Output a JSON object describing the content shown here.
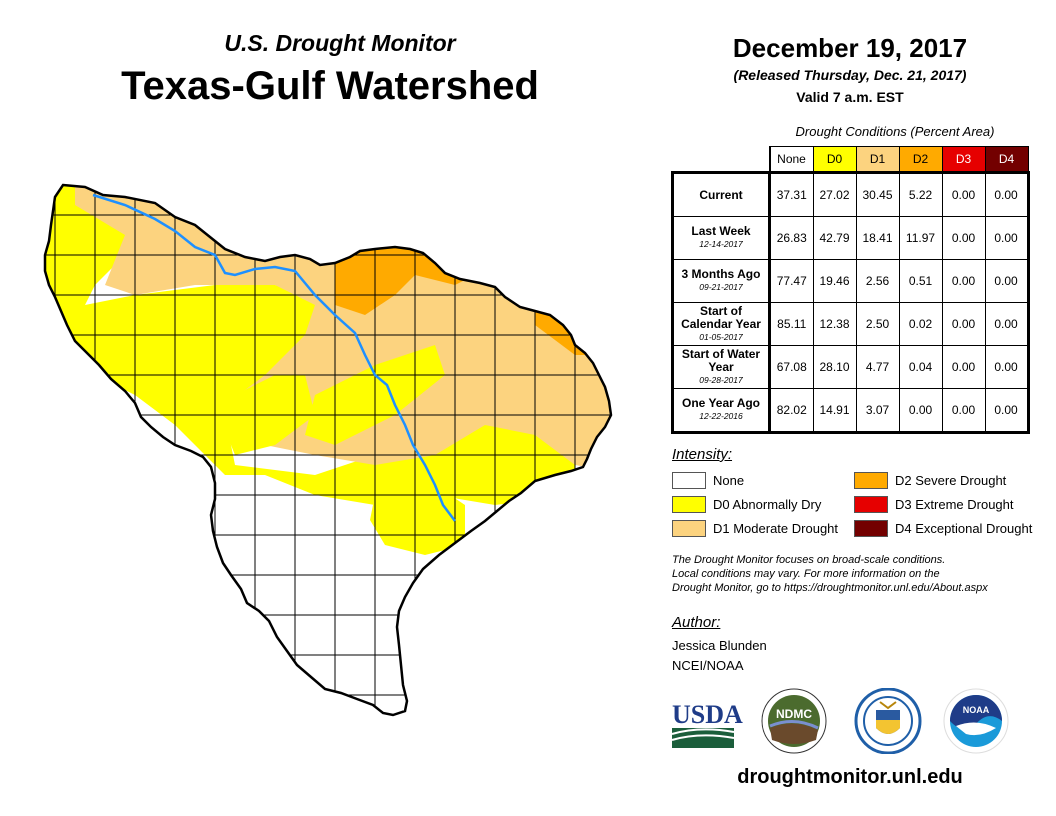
{
  "header": {
    "subtitle": "U.S. Drought Monitor",
    "title": "Texas-Gulf Watershed",
    "date": "December 19, 2017",
    "released": "(Released Thursday, Dec. 21, 2017)",
    "valid": "Valid 7 a.m. EST"
  },
  "table": {
    "caption": "Drought Conditions (Percent Area)",
    "columns": [
      {
        "label": "None",
        "color": "#ffffff",
        "text_color": "#000000"
      },
      {
        "label": "D0",
        "color": "#ffff00",
        "text_color": "#000000"
      },
      {
        "label": "D1",
        "color": "#fcd37f",
        "text_color": "#000000"
      },
      {
        "label": "D2",
        "color": "#ffaa00",
        "text_color": "#000000"
      },
      {
        "label": "D3",
        "color": "#e60000",
        "text_color": "#ffffff"
      },
      {
        "label": "D4",
        "color": "#730000",
        "text_color": "#ffffff"
      }
    ],
    "rows": [
      {
        "label": "Current",
        "date": "",
        "values": [
          "37.31",
          "27.02",
          "30.45",
          "5.22",
          "0.00",
          "0.00"
        ]
      },
      {
        "label": "Last Week",
        "date": "12-14-2017",
        "values": [
          "26.83",
          "42.79",
          "18.41",
          "11.97",
          "0.00",
          "0.00"
        ]
      },
      {
        "label": "3 Months Ago",
        "date": "09-21-2017",
        "values": [
          "77.47",
          "19.46",
          "2.56",
          "0.51",
          "0.00",
          "0.00"
        ]
      },
      {
        "label": "Start of Calendar Year",
        "date": "01-05-2017",
        "values": [
          "85.11",
          "12.38",
          "2.50",
          "0.02",
          "0.00",
          "0.00"
        ]
      },
      {
        "label": "Start of Water Year",
        "date": "09-28-2017",
        "values": [
          "67.08",
          "28.10",
          "4.77",
          "0.04",
          "0.00",
          "0.00"
        ]
      },
      {
        "label": "One Year Ago",
        "date": "12-22-2016",
        "values": [
          "82.02",
          "14.91",
          "3.07",
          "0.00",
          "0.00",
          "0.00"
        ]
      }
    ]
  },
  "legend": {
    "title": "Intensity:",
    "items": [
      {
        "label": "None",
        "color": "#ffffff"
      },
      {
        "label": "D0 Abnormally Dry",
        "color": "#ffff00"
      },
      {
        "label": "D1 Moderate Drought",
        "color": "#fcd37f"
      },
      {
        "label": "D2 Severe Drought",
        "color": "#ffaa00"
      },
      {
        "label": "D3 Extreme Drought",
        "color": "#e60000"
      },
      {
        "label": "D4 Exceptional Drought",
        "color": "#730000"
      }
    ]
  },
  "note": {
    "line1": "The Drought Monitor focuses on broad-scale conditions.",
    "line2": "Local conditions may vary. For more information on the",
    "line3": "Drought Monitor, go to https://droughtmonitor.unl.edu/About.aspx"
  },
  "author": {
    "heading": "Author:",
    "name": "Jessica Blunden",
    "org": "NCEI/NOAA"
  },
  "logos": {
    "usda": "USDA",
    "ndmc": "NDMC",
    "noaa": "NOAA"
  },
  "footer": {
    "url": "droughtmonitor.unl.edu"
  },
  "map": {
    "river_color": "#1e90ff",
    "border_color": "#000000"
  }
}
